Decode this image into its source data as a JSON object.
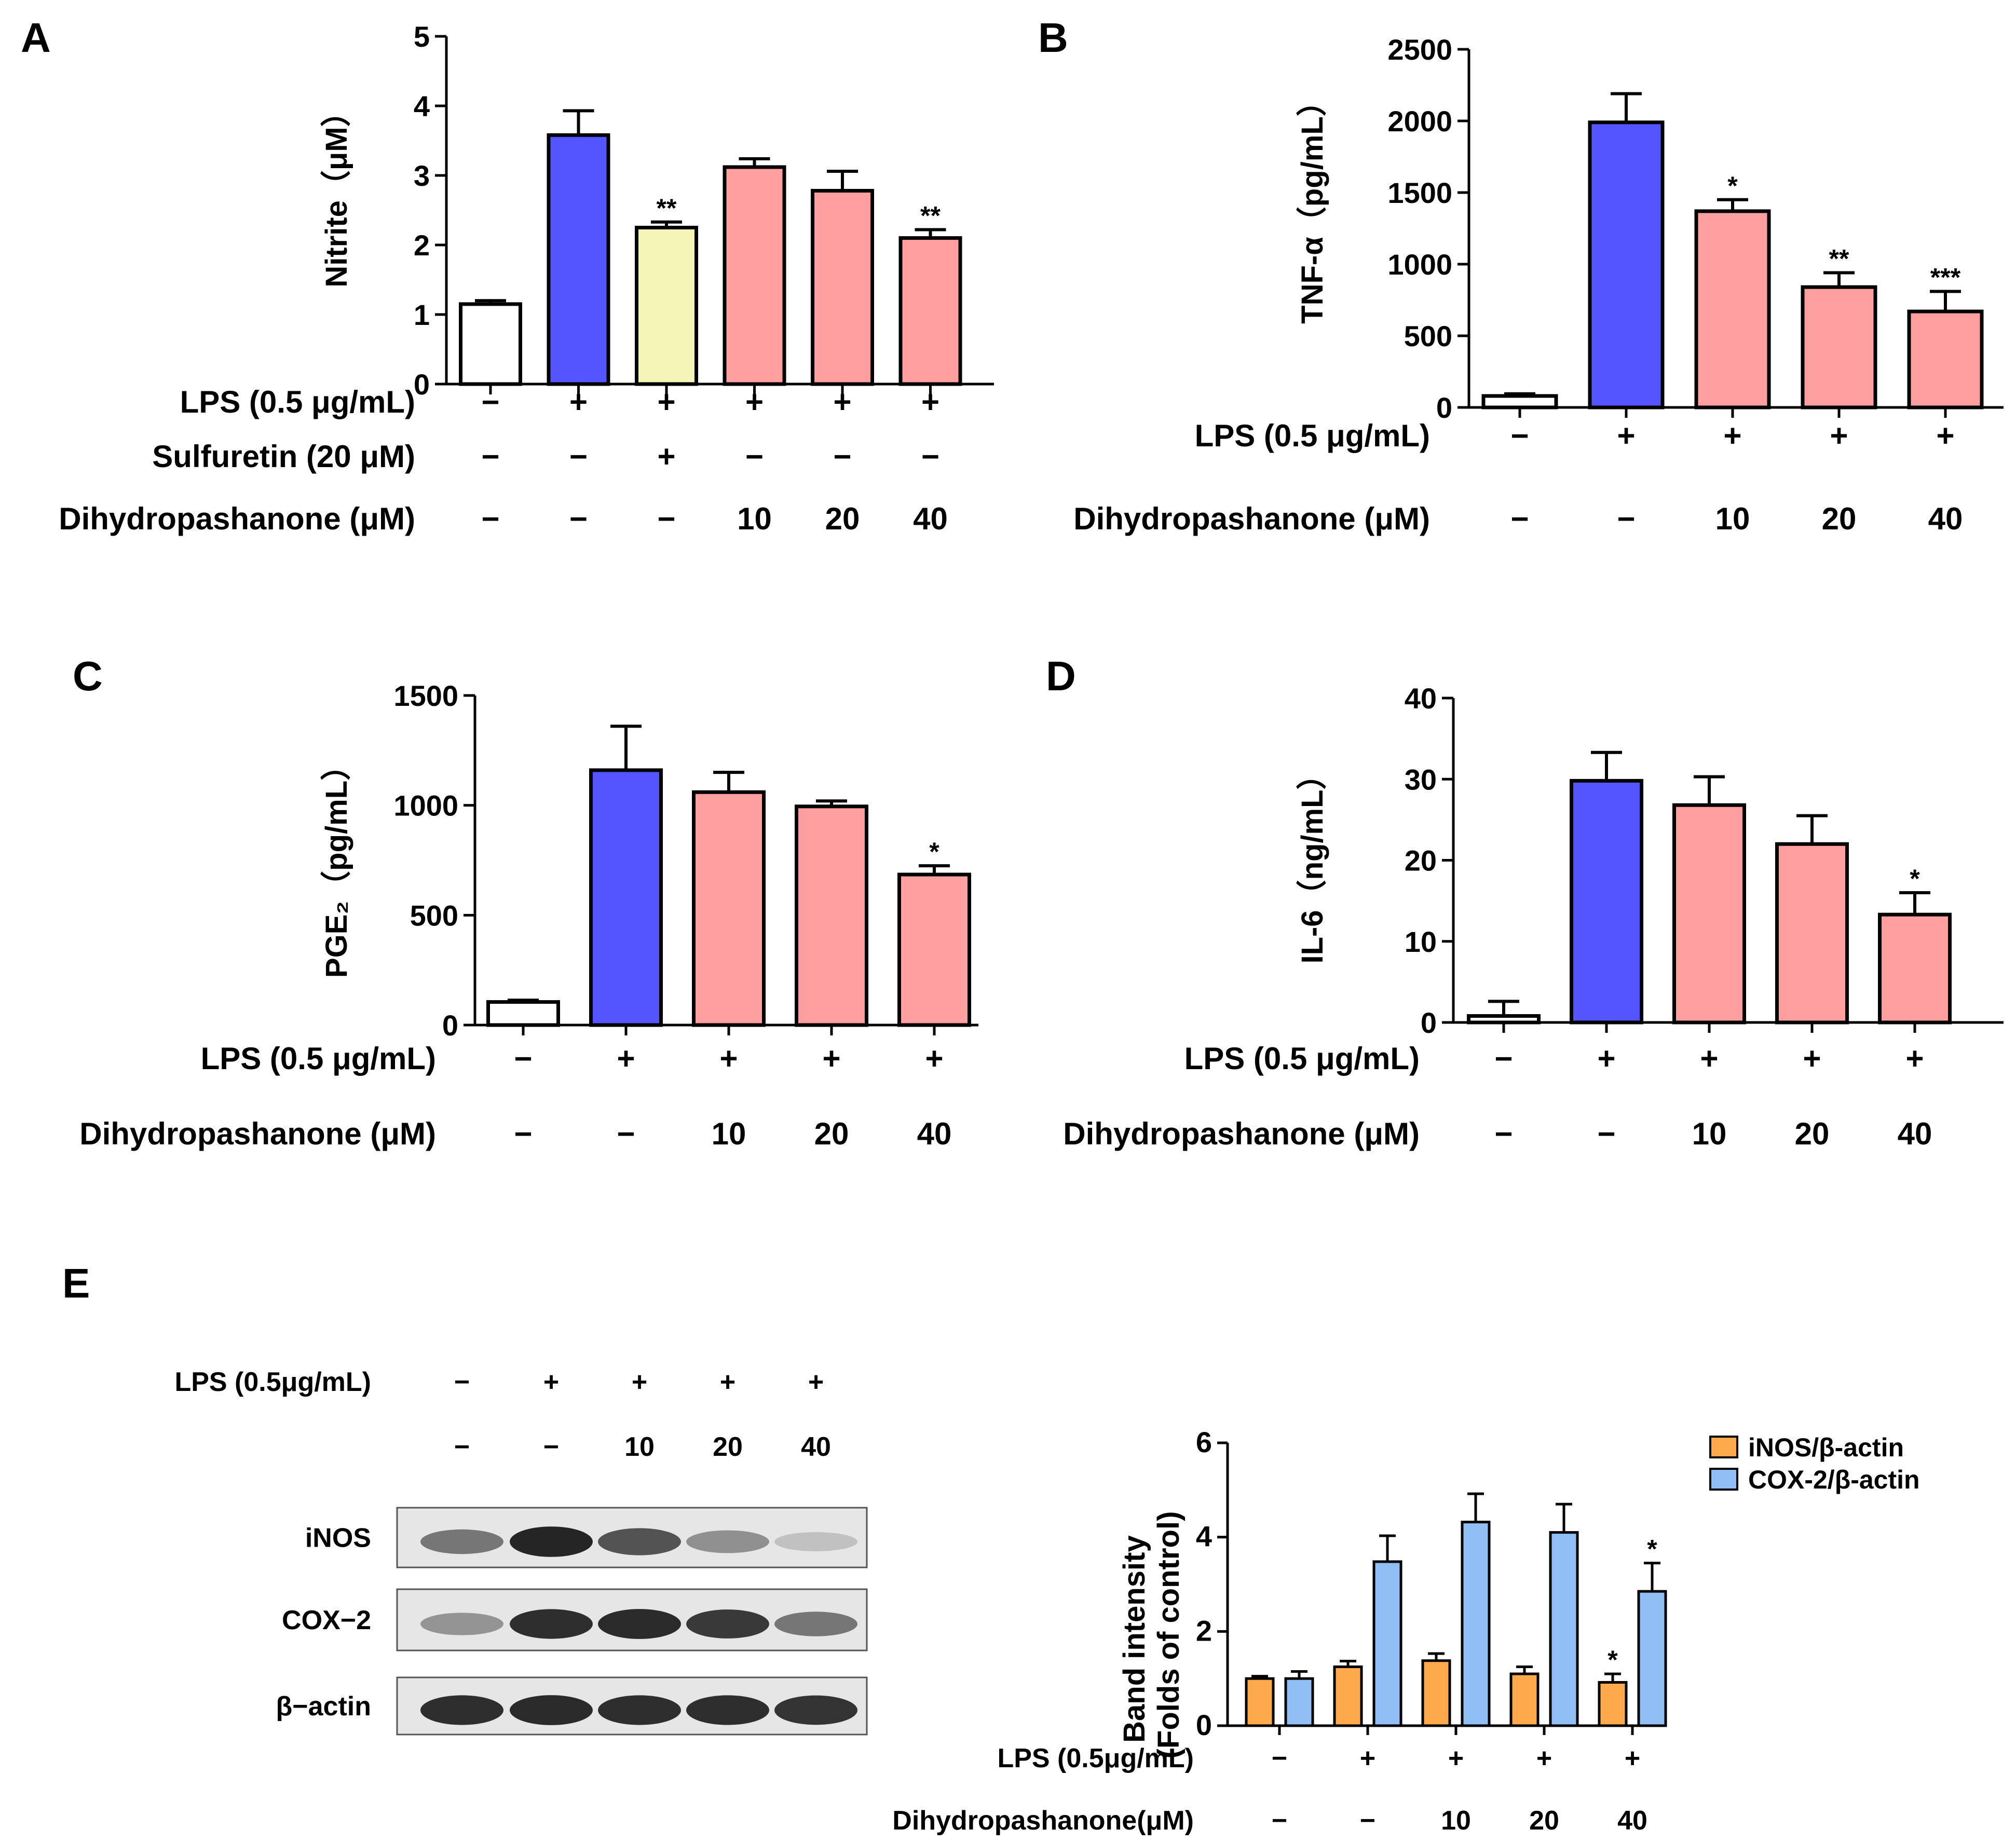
{
  "figure": {
    "panels": [
      {
        "id": "A",
        "ylabel": "Nitrite（μM）",
        "conditions": [
          {
            "label": "LPS (0.5 μg/mL)",
            "values": [
              "−",
              "+",
              "+",
              "+",
              "+",
              "+"
            ]
          },
          {
            "label": "Sulfuretin (20 μM)",
            "values": [
              "−",
              "−",
              "+",
              "−",
              "−",
              "−"
            ]
          },
          {
            "label": "Dihydropashanone (μM)",
            "values": [
              "−",
              "−",
              "−",
              "10",
              "20",
              "40"
            ]
          }
        ]
      },
      {
        "id": "B",
        "ylabel": "TNF-α（pg/mL）",
        "conditions": [
          {
            "label": "LPS (0.5 μg/mL)",
            "values": [
              "−",
              "+",
              "+",
              "+",
              "+"
            ]
          },
          {
            "label": "Dihydropashanone (μM)",
            "values": [
              "−",
              "−",
              "10",
              "20",
              "40"
            ]
          }
        ]
      },
      {
        "id": "C",
        "ylabel": "PGE₂（pg/mL）",
        "conditions": [
          {
            "label": "LPS (0.5 μg/mL)",
            "values": [
              "−",
              "+",
              "+",
              "+",
              "+"
            ]
          },
          {
            "label": "Dihydropashanone (μM)",
            "values": [
              "−",
              "−",
              "10",
              "20",
              "40"
            ]
          }
        ]
      },
      {
        "id": "D",
        "ylabel": "IL-6（ng/mL）",
        "conditions": [
          {
            "label": "LPS (0.5 μg/mL)",
            "values": [
              "−",
              "+",
              "+",
              "+",
              "+"
            ]
          },
          {
            "label": "Dihydropashanone (μM)",
            "values": [
              "−",
              "−",
              "10",
              "20",
              "40"
            ]
          }
        ]
      },
      {
        "id": "E",
        "ylabel": [
          "Band intensity",
          "(Folds of control)"
        ],
        "conditions": [
          {
            "label": "LPS (0.5μg/mL)",
            "values": [
              "−",
              "+",
              "+",
              "+",
              "+"
            ]
          },
          {
            "label": "Dihydropashanone(μM)",
            "values": [
              "−",
              "−",
              "10",
              "20",
              "40"
            ]
          }
        ]
      }
    ],
    "western_blot": {
      "conditions": [
        {
          "label": "LPS (0.5μg/mL)",
          "values": [
            "−",
            "+",
            "+",
            "+",
            "+"
          ]
        },
        {
          "label": "",
          "values": [
            "−",
            "−",
            "10",
            "20",
            "40"
          ]
        }
      ],
      "proteins": [
        {
          "label": "iNOS",
          "intensities": [
            0.55,
            0.95,
            0.72,
            0.42,
            0.18
          ]
        },
        {
          "label": "COX−2",
          "intensities": [
            0.4,
            0.9,
            0.92,
            0.85,
            0.55
          ]
        },
        {
          "label": "β−actin",
          "intensities": [
            0.9,
            0.92,
            0.9,
            0.9,
            0.88
          ]
        }
      ]
    },
    "colors": {
      "control": "#ffffff",
      "lps": "#5555ff",
      "sulfuretin": "#f5f5b8",
      "treatment": "#ff9f9f",
      "inos": "#ffa94d",
      "cox2": "#8fbff5"
    }
  },
  "chart_data": [
    {
      "panel": "A",
      "type": "bar",
      "ylabel": "Nitrite（μM）",
      "ylim": [
        0,
        5
      ],
      "yticks": [
        0,
        1,
        2,
        3,
        4,
        5
      ],
      "values": [
        1.15,
        3.58,
        2.25,
        3.12,
        2.78,
        2.1
      ],
      "errors": [
        0.05,
        0.35,
        0.08,
        0.12,
        0.28,
        0.12
      ],
      "bar_colors": [
        "control",
        "lps",
        "sulfuretin",
        "treatment",
        "treatment",
        "treatment"
      ],
      "significance": [
        "",
        "",
        "**",
        "",
        "",
        "**"
      ]
    },
    {
      "panel": "B",
      "type": "bar",
      "ylabel": "TNF-α（pg/mL）",
      "ylim": [
        0,
        2500
      ],
      "yticks": [
        0,
        500,
        1000,
        1500,
        2000,
        2500
      ],
      "values": [
        80,
        1990,
        1370,
        840,
        670
      ],
      "errors": [
        15,
        200,
        80,
        100,
        140
      ],
      "bar_colors": [
        "control",
        "lps",
        "treatment",
        "treatment",
        "treatment"
      ],
      "significance": [
        "",
        "",
        "*",
        "**",
        "***"
      ]
    },
    {
      "panel": "C",
      "type": "bar",
      "ylabel": "PGE₂（pg/mL）",
      "ylim": [
        0,
        1500
      ],
      "yticks": [
        0,
        500,
        1000,
        1500
      ],
      "values": [
        105,
        1160,
        1060,
        995,
        685
      ],
      "errors": [
        8,
        200,
        90,
        25,
        40
      ],
      "bar_colors": [
        "control",
        "lps",
        "treatment",
        "treatment",
        "treatment"
      ],
      "significance": [
        "",
        "",
        "",
        "",
        "*"
      ]
    },
    {
      "panel": "D",
      "type": "bar",
      "ylabel": "IL-6（ng/mL）",
      "ylim": [
        0,
        40
      ],
      "yticks": [
        0,
        10,
        20,
        30,
        40
      ],
      "values": [
        0.8,
        29.8,
        26.8,
        22,
        13.3
      ],
      "errors": [
        1.8,
        3.5,
        3.5,
        3.5,
        2.7
      ],
      "bar_colors": [
        "control",
        "lps",
        "treatment",
        "treatment",
        "treatment"
      ],
      "significance": [
        "",
        "",
        "",
        "",
        "*"
      ]
    },
    {
      "panel": "E",
      "type": "bar",
      "ylabel": "Band intensity (Folds of control)",
      "ylim": [
        0,
        6
      ],
      "yticks": [
        0,
        2,
        4,
        6
      ],
      "legend_position": "top-right",
      "series": [
        {
          "name": "iNOS/β-actin",
          "color": "inos",
          "values": [
            1.0,
            1.25,
            1.38,
            1.1,
            0.92
          ],
          "errors": [
            0.05,
            0.12,
            0.15,
            0.15,
            0.18
          ],
          "significance": [
            "",
            "",
            "",
            "",
            "*"
          ]
        },
        {
          "name": "COX-2/β-actin",
          "color": "cox2",
          "values": [
            1.0,
            3.48,
            4.32,
            4.1,
            2.85
          ],
          "errors": [
            0.15,
            0.55,
            0.6,
            0.6,
            0.6
          ],
          "significance": [
            "",
            "",
            "",
            "",
            "*"
          ]
        }
      ]
    }
  ]
}
